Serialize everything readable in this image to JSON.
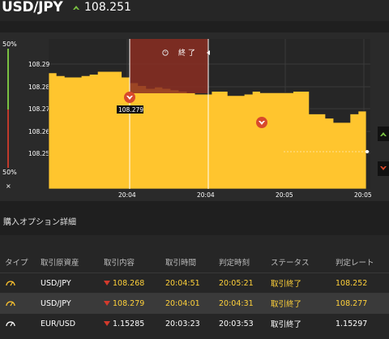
{
  "header": {
    "pair": "USD/JPY",
    "price": "108.251"
  },
  "chart": {
    "left_scale": {
      "top": "50%",
      "bottom": "50%",
      "close": "×"
    },
    "y_ticks": [
      "108.29",
      "108.28",
      "108.27",
      "108.26",
      "108.25"
    ],
    "x_ticks": [
      "20:04",
      "20:04",
      "20:05",
      "20:05"
    ],
    "expired_label": "終 了",
    "entry_label": "108.279"
  },
  "chart_data": {
    "type": "area",
    "title": "",
    "ylim": [
      108.243,
      108.296
    ],
    "x": [
      0,
      1,
      2,
      3,
      4,
      5,
      6,
      7,
      8,
      9,
      10,
      11,
      12,
      13,
      14,
      15,
      16,
      17,
      18,
      19,
      20,
      21,
      22,
      23,
      24,
      25,
      26,
      27,
      28,
      29,
      30,
      31,
      32,
      33,
      34,
      35,
      36,
      37,
      38,
      39
    ],
    "values": [
      108.284,
      108.283,
      108.2825,
      108.2825,
      108.283,
      108.2835,
      108.2845,
      108.2845,
      108.2845,
      108.2825,
      108.2805,
      108.2795,
      108.2785,
      108.279,
      108.2785,
      108.278,
      108.2775,
      108.277,
      108.2765,
      108.2765,
      108.2775,
      108.2775,
      108.276,
      108.276,
      108.2765,
      108.2775,
      108.277,
      108.277,
      108.277,
      108.277,
      108.2775,
      108.2775,
      108.2695,
      108.2695,
      108.268,
      108.2665,
      108.2665,
      108.2695,
      108.2705,
      108.2705
    ]
  },
  "section": {
    "title": "購入オプション詳細"
  },
  "table": {
    "headers": [
      "タイプ",
      "取引原資産",
      "取引内容",
      "取引時間",
      "判定時刻",
      "ステータス",
      "判定レート"
    ],
    "rows": [
      {
        "asset": "USD/JPY",
        "rate": "108.268",
        "time": "20:04:51",
        "judge": "20:05:21",
        "status": "取引終了",
        "result": "108.252"
      },
      {
        "asset": "USD/JPY",
        "rate": "108.279",
        "time": "20:04:01",
        "judge": "20:04:31",
        "status": "取引終了",
        "result": "108.277"
      },
      {
        "asset": "EUR/USD",
        "rate": "1.15285",
        "time": "20:03:23",
        "judge": "20:03:53",
        "status": "取引終了",
        "result": "1.15297"
      }
    ]
  },
  "colors": {
    "area": "#ffc52e",
    "down": "#d33a2c",
    "up": "#7ac142",
    "expired": "#8b2e22"
  }
}
